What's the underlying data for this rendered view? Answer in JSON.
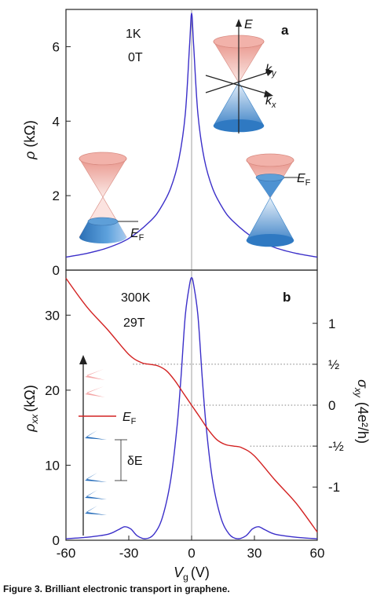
{
  "chart_data": [
    {
      "panel": "a",
      "type": "line",
      "annotation": [
        "1K",
        "0T"
      ],
      "ylabel": "ρ (kΩ)",
      "yticks": [
        0,
        2,
        4,
        6
      ],
      "ylim": [
        0,
        7.0
      ],
      "xlim": [
        -60,
        60
      ],
      "series": [
        {
          "color": "#3b2fc9",
          "x": [
            -60,
            -50,
            -40,
            -30,
            -20,
            -15,
            -10,
            -6,
            -3,
            -1,
            0,
            1,
            3,
            6,
            10,
            15,
            20,
            30,
            40,
            50,
            60
          ],
          "y": [
            0.35,
            0.45,
            0.6,
            0.85,
            1.3,
            1.65,
            2.2,
            3.0,
            4.2,
            6.0,
            6.9,
            6.0,
            4.2,
            3.0,
            2.2,
            1.65,
            1.3,
            0.85,
            0.6,
            0.45,
            0.35
          ]
        }
      ],
      "insets": {
        "dirac_cone_axes": [
          "E",
          "k_y",
          "k_x"
        ],
        "fermi_label": "E_F"
      }
    },
    {
      "panel": "b",
      "type": "line",
      "annotation": [
        "300K",
        "29T"
      ],
      "xlabel": "V_g (V)",
      "xticks": [
        -60,
        -30,
        0,
        30,
        60
      ],
      "xlim": [
        -60,
        60
      ],
      "ylabel_left": "ρ_xx (kΩ)",
      "yticks_left": [
        0,
        10,
        20,
        30
      ],
      "ylim_left": [
        0,
        36
      ],
      "ylabel_right": "σ_xy (4e²/h)",
      "yticks_right": [
        "1",
        "½",
        "0",
        "-½",
        "-1"
      ],
      "yticks_right_values": [
        1,
        0.5,
        0,
        -0.5,
        -1
      ],
      "ylim_right": [
        -1.65,
        1.65
      ],
      "series": [
        {
          "axis": "left",
          "color": "#3b2fc9",
          "x": [
            -60,
            -50,
            -40,
            -35,
            -32,
            -29,
            -26,
            -22,
            -18,
            -14,
            -10,
            -7,
            -5,
            -3,
            -1,
            0,
            1,
            3,
            5,
            7,
            10,
            14,
            18,
            22,
            26,
            29,
            32,
            35,
            40,
            50,
            60
          ],
          "y": [
            0.2,
            0.4,
            0.8,
            1.4,
            1.8,
            1.5,
            0.6,
            0.2,
            0.8,
            3,
            8,
            15,
            22,
            30,
            34,
            35,
            34,
            30,
            22,
            15,
            8,
            3,
            0.8,
            0.2,
            0.6,
            1.5,
            1.8,
            1.4,
            0.8,
            0.4,
            0.2
          ]
        },
        {
          "axis": "right",
          "color": "#d32222",
          "x": [
            -60,
            -50,
            -40,
            -30,
            -24,
            -20,
            -16,
            -12,
            -8,
            -4,
            0,
            4,
            8,
            12,
            16,
            20,
            24,
            30,
            40,
            50,
            60
          ],
          "y": [
            1.55,
            1.2,
            0.92,
            0.62,
            0.52,
            0.5,
            0.48,
            0.42,
            0.3,
            0.15,
            0.0,
            -0.15,
            -0.3,
            -0.42,
            -0.48,
            -0.5,
            -0.52,
            -0.62,
            -0.92,
            -1.2,
            -1.55
          ]
        }
      ],
      "dotted_levels": [
        {
          "x": [
            -28,
            60
          ],
          "value": 0.5
        },
        {
          "x": [
            28,
            60
          ],
          "value": -0.5
        },
        {
          "x": [
            -5,
            60
          ],
          "value": 0
        }
      ],
      "insets": {
        "fermi_label": "E_F",
        "gap_label": "δE"
      }
    }
  ],
  "labels": {
    "panel_a": "a",
    "panel_b": "b",
    "a_ann1": "1K",
    "a_ann2": "0T",
    "b_ann1": "300K",
    "b_ann2": "29T",
    "E_axis": "E",
    "ky": "k",
    "ky_sub": "y",
    "kx": "k",
    "kx_sub": "x",
    "ef_main": "E",
    "ef_sub": "F",
    "delta_e": "δE",
    "ylabel_a_main": "ρ",
    "ylabel_a_unit": "(kΩ)",
    "ylabel_b_main": "ρ",
    "ylabel_b_sub": "xx",
    "ylabel_b_unit": "(kΩ)",
    "ylabel_r_main": "σ",
    "ylabel_r_sub": "xy",
    "ylabel_r_unit": "(4e²/h)",
    "xlabel_main": "V",
    "xlabel_sub": "g",
    "xlabel_unit": "(V)",
    "caption_fragment": "Figure 3. Brilliant electronic transport in graphene."
  },
  "colors": {
    "blue_curve": "#3b2fc9",
    "red_curve": "#d32222",
    "cone_red": "#e9a39a",
    "cone_blue": "#3a84c9"
  }
}
